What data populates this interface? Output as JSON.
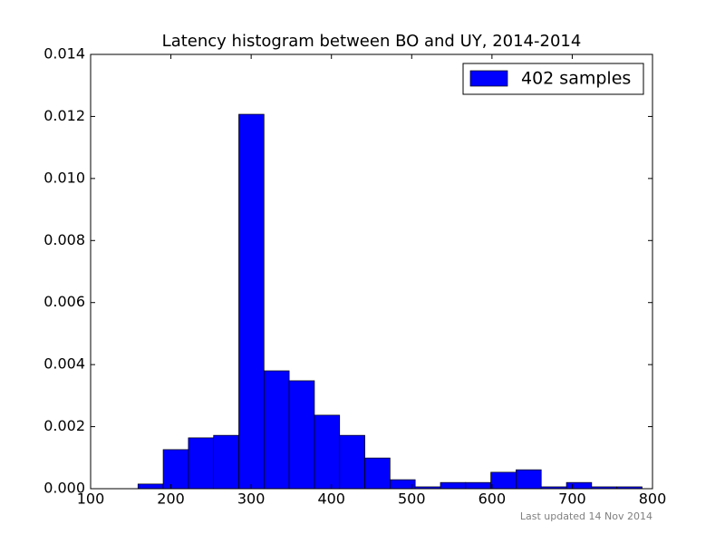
{
  "chart_data": {
    "type": "histogram",
    "title": "Latency histogram between BO and UY, 2014-2014",
    "bins": [
      159,
      190.4,
      221.8,
      253.2,
      284.6,
      316,
      347.4,
      378.8,
      410.2,
      441.6,
      473,
      504.4,
      535.8,
      567.2,
      598.6,
      630,
      661.4,
      692.8,
      724.2,
      755.6,
      787
    ],
    "series": [
      {
        "name": "402 samples",
        "color": "#0000ff",
        "values": [
          0.00015,
          0.00126,
          0.00164,
          0.00172,
          0.01207,
          0.0038,
          0.00348,
          0.00237,
          0.00172,
          0.00099,
          0.00029,
          6e-05,
          0.0002,
          0.0002,
          0.00053,
          0.00061,
          6e-05,
          0.0002,
          6e-05,
          6e-05
        ]
      }
    ],
    "xlim": [
      100,
      800
    ],
    "xticks": [
      100,
      200,
      300,
      400,
      500,
      600,
      700,
      800
    ],
    "ylim": [
      0,
      0.014
    ],
    "yticks": [
      {
        "value": 0,
        "label": "0.000"
      },
      {
        "value": 0.002,
        "label": "0.002"
      },
      {
        "value": 0.004,
        "label": "0.004"
      },
      {
        "value": 0.006,
        "label": "0.006"
      },
      {
        "value": 0.008,
        "label": "0.008"
      },
      {
        "value": 0.01,
        "label": "0.010"
      },
      {
        "value": 0.012,
        "label": "0.012"
      },
      {
        "value": 0.014,
        "label": "0.014"
      }
    ],
    "legend": "upper right",
    "footer": "Last updated 14 Nov 2014"
  }
}
